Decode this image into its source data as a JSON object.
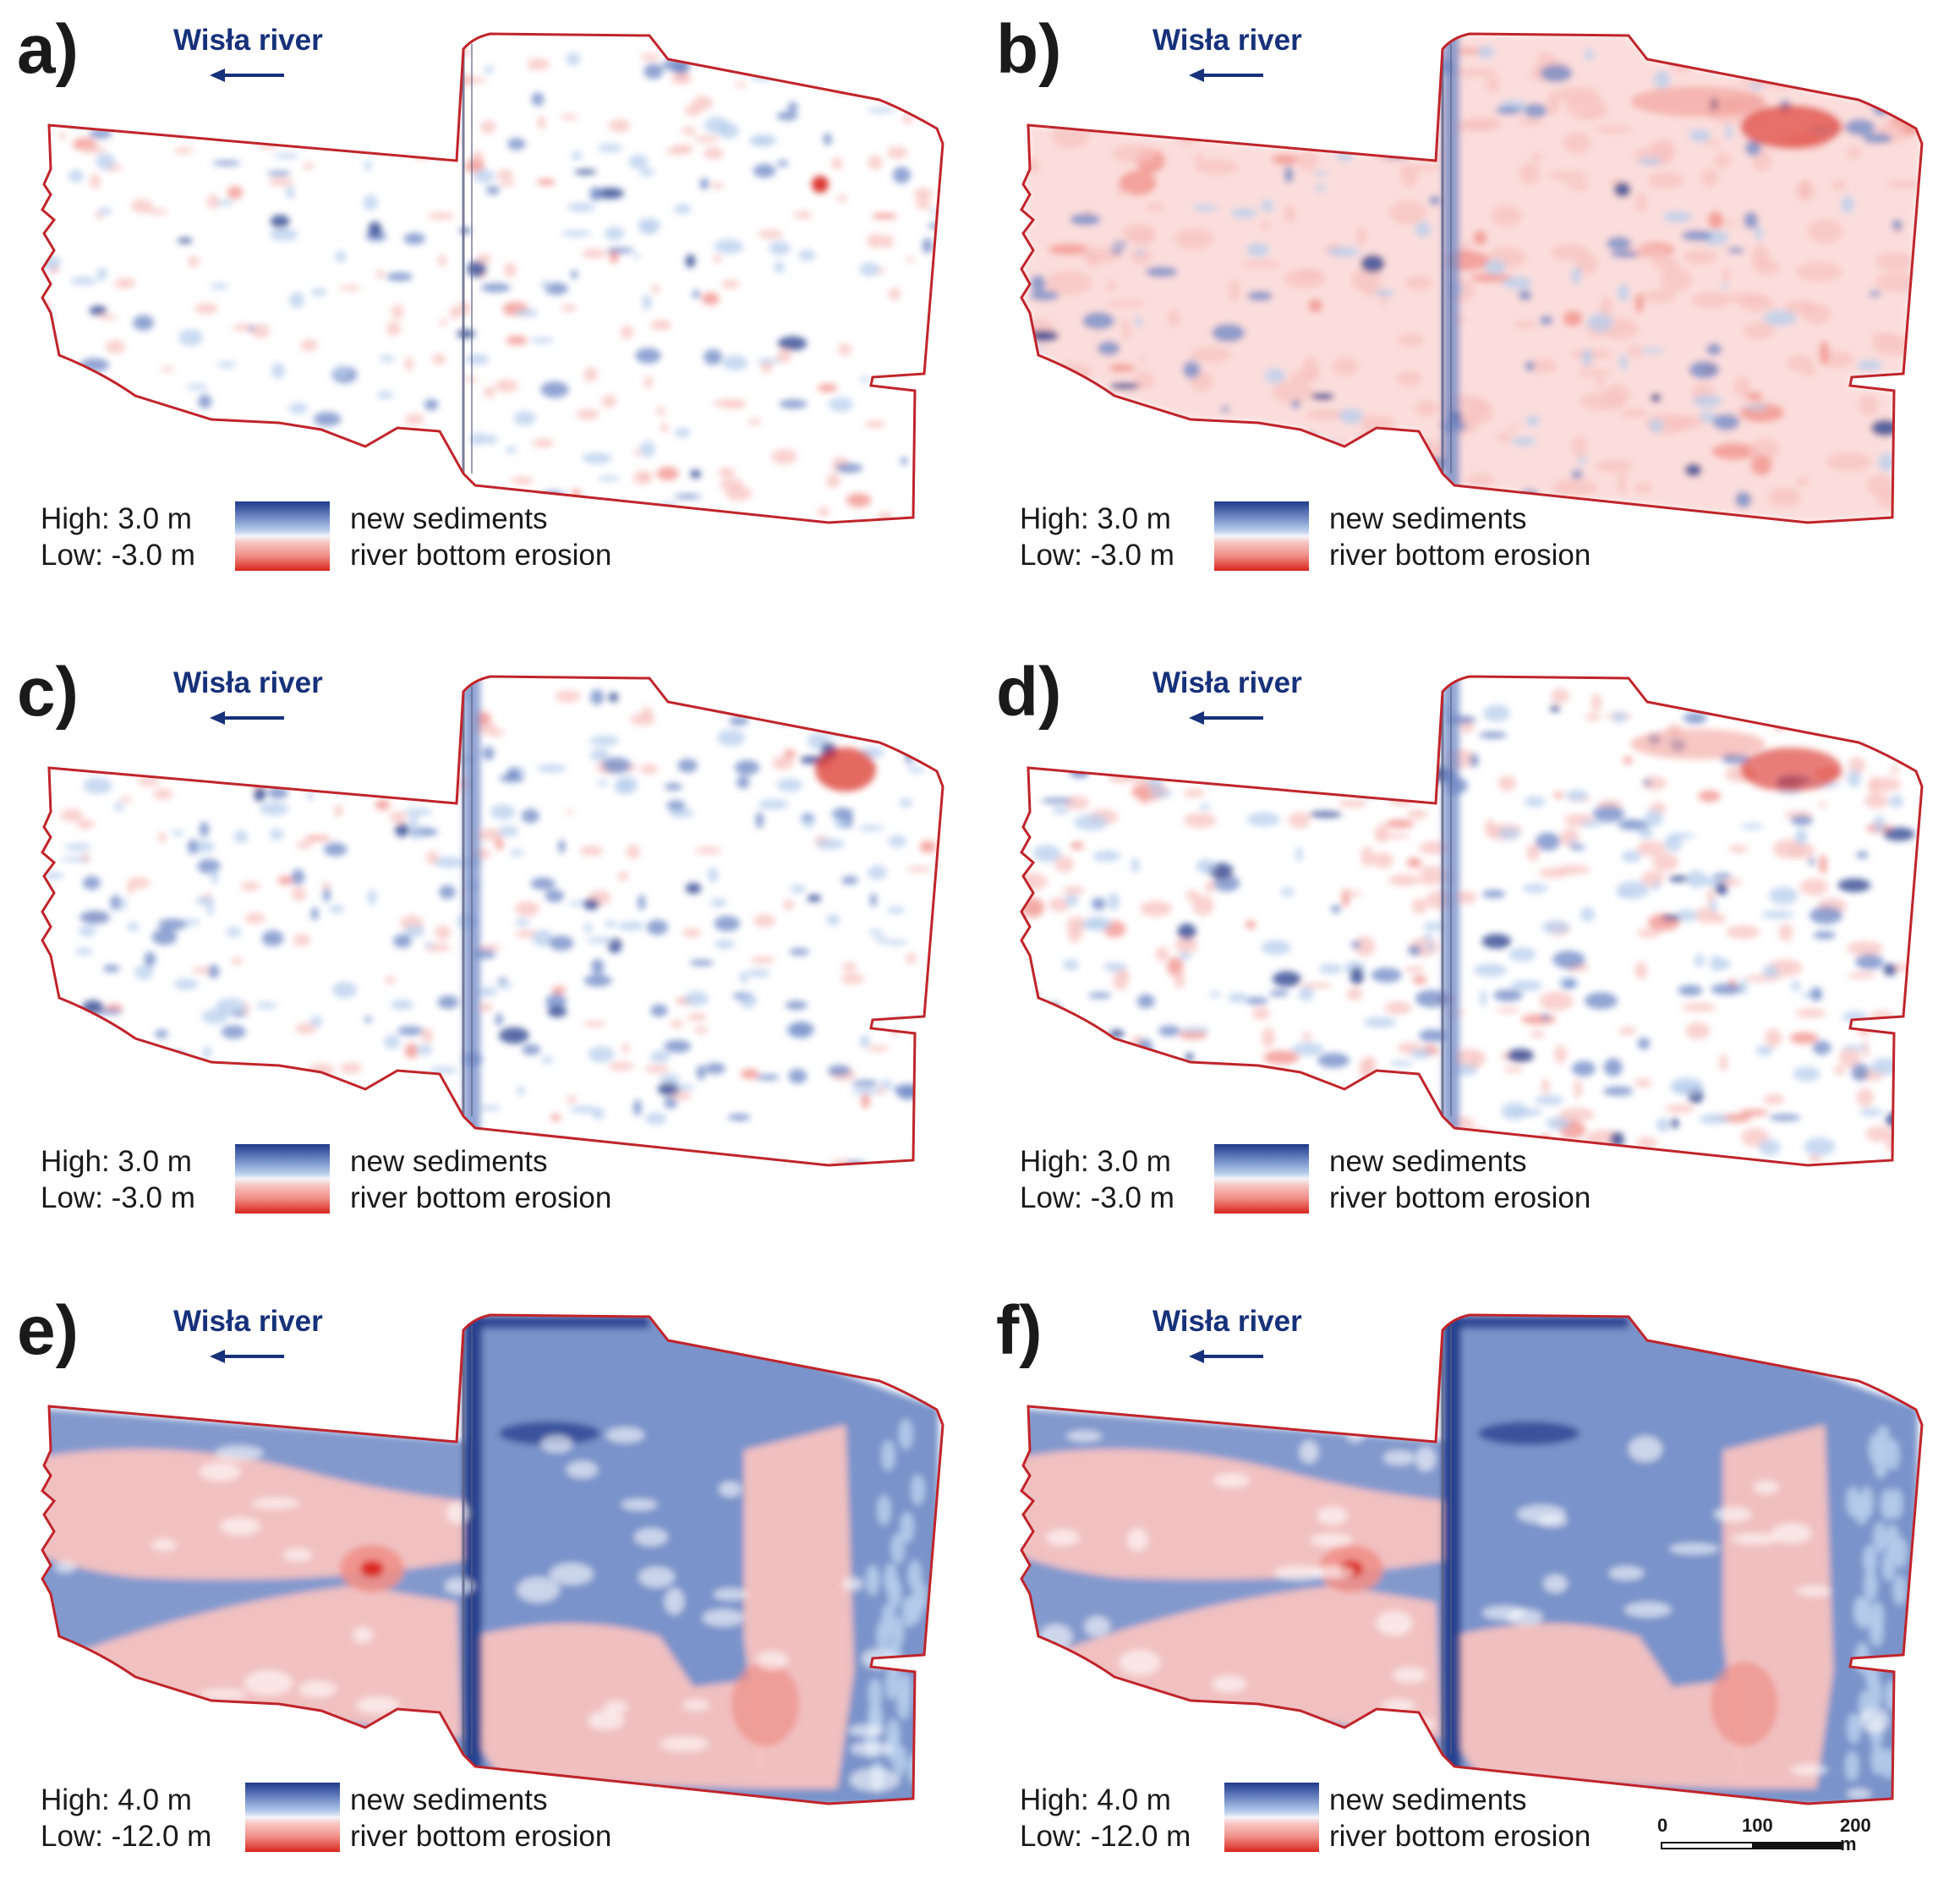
{
  "river": {
    "label": "Wisła river",
    "direction": "left"
  },
  "legend_text": {
    "new_sediments": "new sediments",
    "erosion": "river bottom erosion"
  },
  "colors": {
    "outline": "#c0242a",
    "sediment_dark": "#203a8a",
    "sediment_mid": "#6c87c4",
    "sediment_light": "#b7cdec",
    "erosion_light": "#f7c3c0",
    "erosion_mid": "#f08f88",
    "erosion_dark": "#d9261c",
    "river_text": "#17317a"
  },
  "panels": [
    {
      "id": "a",
      "label": "a)",
      "high": "High: 3.0 m",
      "low": "Low: -3.0 m",
      "style": "sparse"
    },
    {
      "id": "b",
      "label": "b)",
      "high": "High: 3.0 m",
      "low": "Low: -3.0 m",
      "style": "erosion-wash"
    },
    {
      "id": "c",
      "label": "c)",
      "high": "High: 3.0 m",
      "low": "Low: -3.0 m",
      "style": "sediment-patches"
    },
    {
      "id": "d",
      "label": "d)",
      "high": "High: 3.0 m",
      "low": "Low: -3.0 m",
      "style": "mixed"
    },
    {
      "id": "e",
      "label": "e)",
      "high": "High: 4.0 m",
      "low": "Low: -12.0 m",
      "style": "cumulative"
    },
    {
      "id": "f",
      "label": "f)",
      "high": "High: 4.0 m",
      "low": "Low: -12.0 m",
      "style": "cumulative"
    }
  ],
  "scale_bar": {
    "ticks": [
      "0",
      "100",
      "200 m"
    ]
  }
}
